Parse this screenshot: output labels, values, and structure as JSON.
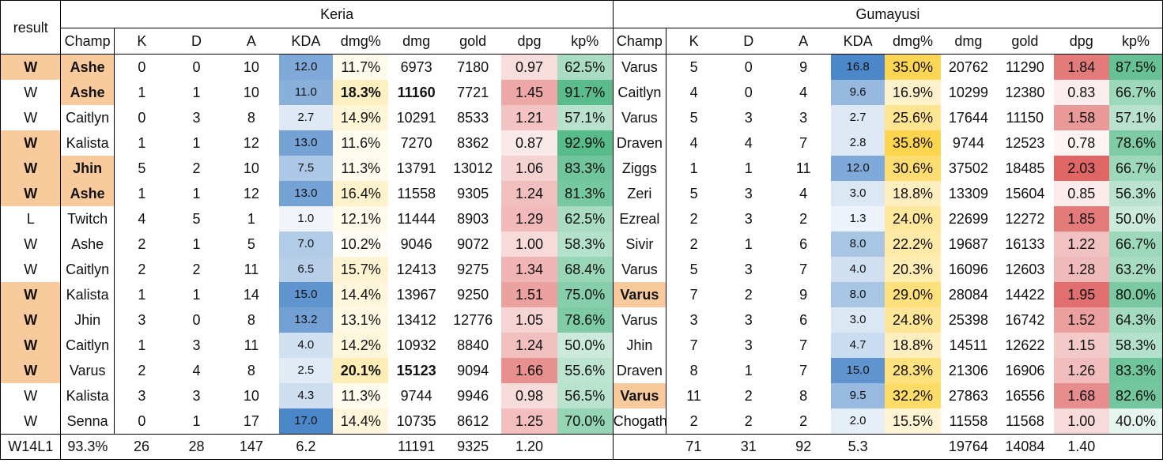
{
  "group_headers": {
    "result": "result",
    "left": "Keria",
    "right": "Gumayusi"
  },
  "columns": [
    "Champ",
    "K",
    "D",
    "A",
    "KDA",
    "dmg%",
    "dmg",
    "gold",
    "dpg",
    "kp%"
  ],
  "rows": [
    {
      "result": "W",
      "k_champ": "Ashe",
      "k": [
        "0",
        "0",
        "10",
        "12.0",
        "11.7%",
        "6973",
        "7180",
        "0.97",
        "62.5%"
      ],
      "g_champ": "Varus",
      "g": [
        "5",
        "0",
        "9",
        "16.8",
        "35.0%",
        "20762",
        "11290",
        "1.84",
        "87.5%"
      ]
    },
    {
      "result": "W",
      "k_champ": "Ashe",
      "k": [
        "1",
        "1",
        "10",
        "11.0",
        "18.3%",
        "11160",
        "7721",
        "1.45",
        "91.7%"
      ],
      "g_champ": "Caitlyn",
      "g": [
        "4",
        "0",
        "4",
        "9.6",
        "16.9%",
        "10299",
        "12380",
        "0.83",
        "66.7%"
      ]
    },
    {
      "result": "W",
      "k_champ": "Caitlyn",
      "k": [
        "0",
        "3",
        "8",
        "2.7",
        "14.9%",
        "10291",
        "8533",
        "1.21",
        "57.1%"
      ],
      "g_champ": "Varus",
      "g": [
        "5",
        "3",
        "3",
        "2.7",
        "25.6%",
        "17644",
        "11150",
        "1.58",
        "57.1%"
      ]
    },
    {
      "result": "W",
      "k_champ": "Kalista",
      "k": [
        "1",
        "1",
        "12",
        "13.0",
        "11.6%",
        "7270",
        "8362",
        "0.87",
        "92.9%"
      ],
      "g_champ": "Draven",
      "g": [
        "4",
        "4",
        "7",
        "2.8",
        "35.8%",
        "9744",
        "12523",
        "0.78",
        "78.6%"
      ]
    },
    {
      "result": "W",
      "k_champ": "Jhin",
      "k": [
        "5",
        "2",
        "10",
        "7.5",
        "11.3%",
        "13791",
        "13012",
        "1.06",
        "83.3%"
      ],
      "g_champ": "Ziggs",
      "g": [
        "1",
        "1",
        "11",
        "12.0",
        "30.6%",
        "37502",
        "18485",
        "2.03",
        "66.7%"
      ]
    },
    {
      "result": "W",
      "k_champ": "Ashe",
      "k": [
        "1",
        "1",
        "12",
        "13.0",
        "16.4%",
        "11558",
        "9305",
        "1.24",
        "81.3%"
      ],
      "g_champ": "Zeri",
      "g": [
        "5",
        "3",
        "4",
        "3.0",
        "18.8%",
        "13309",
        "15604",
        "0.85",
        "56.3%"
      ]
    },
    {
      "result": "L",
      "k_champ": "Twitch",
      "k": [
        "4",
        "5",
        "1",
        "1.0",
        "12.1%",
        "11444",
        "8903",
        "1.29",
        "62.5%"
      ],
      "g_champ": "Ezreal",
      "g": [
        "2",
        "3",
        "2",
        "1.3",
        "24.0%",
        "22699",
        "12272",
        "1.85",
        "50.0%"
      ]
    },
    {
      "result": "W",
      "k_champ": "Ashe",
      "k": [
        "2",
        "1",
        "5",
        "7.0",
        "10.2%",
        "9046",
        "9072",
        "1.00",
        "58.3%"
      ],
      "g_champ": "Sivir",
      "g": [
        "2",
        "1",
        "6",
        "8.0",
        "22.2%",
        "19687",
        "16133",
        "1.22",
        "66.7%"
      ]
    },
    {
      "result": "W",
      "k_champ": "Caitlyn",
      "k": [
        "2",
        "2",
        "11",
        "6.5",
        "15.7%",
        "12413",
        "9275",
        "1.34",
        "68.4%"
      ],
      "g_champ": "Varus",
      "g": [
        "5",
        "3",
        "7",
        "4.0",
        "20.3%",
        "16096",
        "12603",
        "1.28",
        "63.2%"
      ]
    },
    {
      "result": "W",
      "k_champ": "Kalista",
      "k": [
        "1",
        "1",
        "14",
        "15.0",
        "14.4%",
        "13967",
        "9250",
        "1.51",
        "75.0%"
      ],
      "g_champ": "Varus",
      "g": [
        "7",
        "2",
        "9",
        "8.0",
        "29.0%",
        "28084",
        "14422",
        "1.95",
        "80.0%"
      ]
    },
    {
      "result": "W",
      "k_champ": "Jhin",
      "k": [
        "3",
        "0",
        "8",
        "13.2",
        "13.1%",
        "13412",
        "12776",
        "1.05",
        "78.6%"
      ],
      "g_champ": "Varus",
      "g": [
        "3",
        "3",
        "6",
        "3.0",
        "24.8%",
        "25398",
        "16742",
        "1.52",
        "64.3%"
      ]
    },
    {
      "result": "W",
      "k_champ": "Caitlyn",
      "k": [
        "1",
        "3",
        "11",
        "4.0",
        "14.2%",
        "10932",
        "8840",
        "1.24",
        "50.0%"
      ],
      "g_champ": "Jhin",
      "g": [
        "7",
        "3",
        "7",
        "4.7",
        "18.8%",
        "14511",
        "12622",
        "1.15",
        "58.3%"
      ]
    },
    {
      "result": "W",
      "k_champ": "Varus",
      "k": [
        "2",
        "4",
        "8",
        "2.5",
        "20.1%",
        "15123",
        "9094",
        "1.66",
        "55.6%"
      ],
      "g_champ": "Draven",
      "g": [
        "8",
        "1",
        "7",
        "15.0",
        "28.3%",
        "21306",
        "16906",
        "1.26",
        "83.3%"
      ]
    },
    {
      "result": "W",
      "k_champ": "Kalista",
      "k": [
        "3",
        "3",
        "10",
        "4.3",
        "11.3%",
        "9744",
        "9946",
        "0.98",
        "56.5%"
      ],
      "g_champ": "Varus",
      "g": [
        "11",
        "2",
        "8",
        "9.5",
        "32.2%",
        "27863",
        "16556",
        "1.68",
        "82.6%"
      ]
    },
    {
      "result": "W",
      "k_champ": "Senna",
      "k": [
        "0",
        "1",
        "17",
        "17.0",
        "14.4%",
        "10735",
        "8612",
        "1.25",
        "70.0%"
      ],
      "g_champ": "Chogath",
      "g": [
        "2",
        "2",
        "2",
        "2.0",
        "15.5%",
        "11558",
        "11568",
        "1.00",
        "40.0%"
      ]
    }
  ],
  "highlight": {
    "result_rows": [
      0,
      3,
      4,
      5,
      9,
      10,
      11,
      12
    ],
    "keria_champ_rows": [
      0,
      1,
      4,
      5
    ],
    "gumayusi_champ_rows": [
      9,
      13
    ],
    "bold_keria_dmg_rows": [
      1,
      12
    ]
  },
  "footer": {
    "record": "W14L1",
    "k_winrate": "93.3%",
    "k": [
      "26",
      "28",
      "147",
      "6.2",
      "",
      "11191",
      "9325",
      "1.20",
      ""
    ],
    "g": [
      "71",
      "31",
      "92",
      "5.3",
      "",
      "19764",
      "14084",
      "1.40",
      ""
    ]
  },
  "colors": {
    "highlight_orange": "#F9CB9C",
    "kda_blue": "#4A86C8",
    "dmgpct_yellow": "#FFD54F",
    "dpg_red": "#E06666",
    "kp_green": "#57BB8A"
  }
}
